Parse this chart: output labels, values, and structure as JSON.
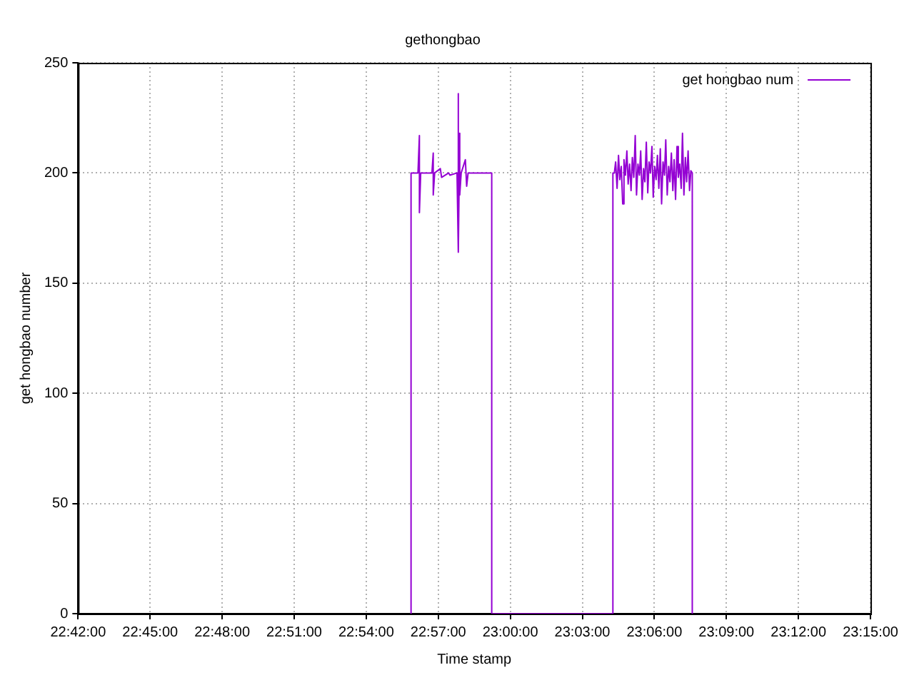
{
  "chart_data": {
    "type": "line",
    "title": "gethongbao",
    "xlabel": "Time stamp",
    "ylabel": "get hongbao number",
    "xlim": [
      22.7,
      23.25
    ],
    "xticks": [
      {
        "value": 22.7,
        "label": "22:42:00"
      },
      {
        "value": 22.75,
        "label": "22:45:00"
      },
      {
        "value": 22.8,
        "label": "22:48:00"
      },
      {
        "value": 22.85,
        "label": "22:51:00"
      },
      {
        "value": 22.9,
        "label": "22:54:00"
      },
      {
        "value": 22.95,
        "label": "22:57:00"
      },
      {
        "value": 23.0,
        "label": "23:00:00"
      },
      {
        "value": 23.05,
        "label": "23:03:00"
      },
      {
        "value": 23.1,
        "label": "23:06:00"
      },
      {
        "value": 23.15,
        "label": "23:09:00"
      },
      {
        "value": 23.2,
        "label": "23:12:00"
      },
      {
        "value": 23.25,
        "label": "23:15:00"
      }
    ],
    "ylim": [
      0,
      250
    ],
    "yticks": [
      0,
      50,
      100,
      150,
      200,
      250
    ],
    "grid": true,
    "legend": "top right",
    "marker": "none",
    "line_style": "solid",
    "series": [
      {
        "name": "get hongbao num",
        "color": "#9400d3",
        "x": [
          22.9311,
          22.9311,
          22.9359,
          22.9369,
          22.9369,
          22.9378,
          22.9456,
          22.9465,
          22.9465,
          22.9475,
          22.9514,
          22.9523,
          22.9572,
          22.9581,
          22.963,
          22.9639,
          22.9639,
          22.9649,
          22.9649,
          22.9659,
          22.9688,
          22.9697,
          22.9707,
          22.9871,
          22.9871,
          23.0712,
          23.0712,
          23.0722,
          23.0731,
          23.0741,
          23.0751,
          23.076,
          23.077,
          23.078,
          23.0789,
          23.0799,
          23.0809,
          23.0818,
          23.0828,
          23.0838,
          23.0847,
          23.0857,
          23.0867,
          23.0876,
          23.0886,
          23.0896,
          23.0905,
          23.0915,
          23.0925,
          23.0934,
          23.0944,
          23.0954,
          23.0963,
          23.0973,
          23.0983,
          23.0992,
          23.1002,
          23.1012,
          23.1021,
          23.1031,
          23.1041,
          23.105,
          23.106,
          23.107,
          23.1079,
          23.1089,
          23.1099,
          23.1108,
          23.1118,
          23.1128,
          23.1137,
          23.1147,
          23.1157,
          23.1166,
          23.1176,
          23.1186,
          23.1195,
          23.1205,
          23.1215,
          23.1224,
          23.1234,
          23.1244,
          23.1253,
          23.1263,
          23.1263
        ],
        "values": [
          0,
          200,
          200,
          217,
          182,
          200,
          200,
          209,
          190,
          200,
          202,
          198,
          200,
          199,
          200,
          236,
          164,
          218,
          190,
          200,
          206,
          194,
          200,
          200,
          0,
          0,
          200,
          200,
          205,
          193,
          208,
          197,
          203,
          186,
          206,
          199,
          210,
          195,
          204,
          192,
          207,
          198,
          217,
          190,
          204,
          199,
          210,
          188,
          202,
          196,
          214,
          191,
          205,
          200,
          212,
          189,
          203,
          197,
          208,
          193,
          211,
          186,
          205,
          199,
          215,
          190,
          203,
          196,
          209,
          192,
          206,
          188,
          212,
          198,
          204,
          193,
          218,
          190,
          207,
          196,
          210,
          192,
          201,
          200,
          0
        ]
      }
    ]
  }
}
